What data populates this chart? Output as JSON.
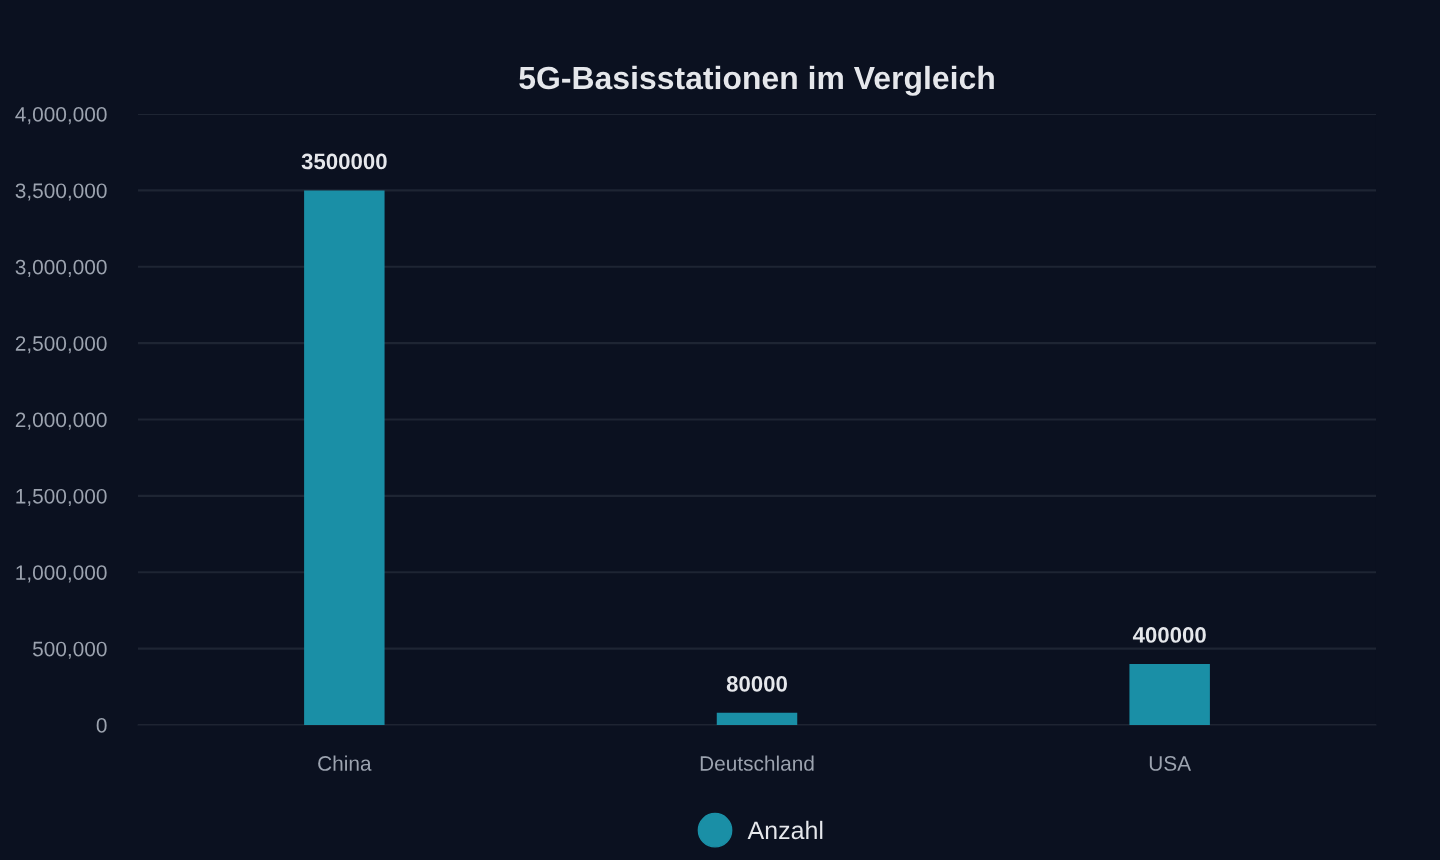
{
  "chart_data": {
    "type": "bar",
    "title": "5G-Basisstationen im Vergleich",
    "categories": [
      "China",
      "Deutschland",
      "USA"
    ],
    "series": [
      {
        "name": "Anzahl",
        "color": "#1a8fa6",
        "values": [
          3500000,
          80000,
          400000
        ]
      }
    ],
    "ylim": [
      0,
      4000000
    ],
    "yticks": [
      0,
      {
        "value": 500000,
        "label": "500,000"
      },
      {
        "value": 1000000,
        "label": "1,000,000"
      },
      {
        "value": 1500000,
        "label": "1,500,000"
      },
      {
        "value": 2000000,
        "label": "2,000,000"
      },
      {
        "value": 2500000,
        "label": "2,500,000"
      },
      {
        "value": 3000000,
        "label": "3,000,000"
      },
      {
        "value": 3500000,
        "label": "3,500,000"
      },
      {
        "value": 4000000,
        "label": "4,000,000"
      }
    ],
    "grid": "y",
    "legend": "bottom",
    "data_labels": true
  }
}
